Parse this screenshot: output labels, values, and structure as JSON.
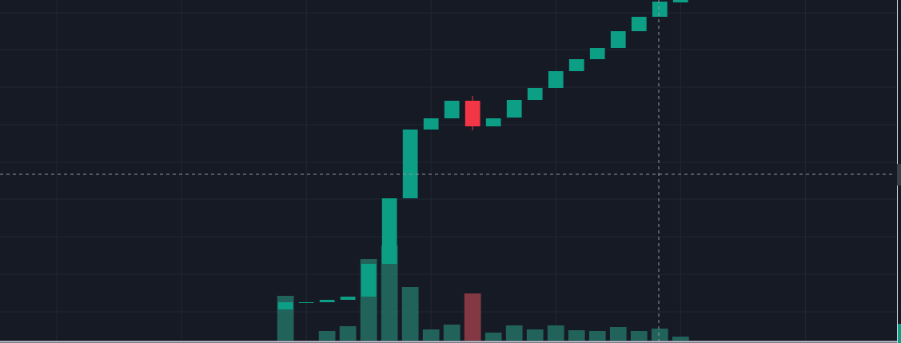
{
  "chart_data": {
    "type": "candlestick",
    "x": [
      0,
      1,
      2,
      3,
      4,
      5,
      6,
      7,
      8,
      9,
      10,
      11,
      12,
      13,
      14,
      15,
      16,
      17,
      18,
      19
    ],
    "open": [
      42,
      50,
      51,
      54,
      58,
      99,
      181,
      267,
      281,
      303,
      271,
      282,
      304,
      319,
      340,
      355,
      369,
      390,
      408,
      426
    ],
    "high": [
      51,
      51,
      54,
      58,
      99,
      181,
      267,
      281,
      303,
      309,
      281,
      304,
      319,
      340,
      355,
      369,
      390,
      408,
      427,
      429
    ],
    "low": [
      42,
      50,
      51,
      54,
      58,
      99,
      181,
      267,
      281,
      266,
      271,
      282,
      304,
      319,
      340,
      355,
      369,
      390,
      408,
      426
    ],
    "close": [
      51,
      51,
      54,
      58,
      99,
      181,
      267,
      281,
      303,
      271,
      281,
      304,
      319,
      340,
      355,
      369,
      390,
      408,
      427,
      429
    ],
    "volume": [
      56,
      0,
      12,
      18,
      102,
      119,
      67,
      14,
      20,
      59,
      10,
      19,
      14,
      19,
      13,
      12,
      17,
      12,
      15,
      5
    ],
    "up_color": "#0c9f86",
    "down_color": "#f23645",
    "volume_up_color": "#22675e",
    "volume_down_color": "#8a3a45",
    "xlim": [
      -13.73,
      29.6
    ],
    "xticks": [
      -11,
      -5,
      1,
      7,
      13,
      19,
      25
    ],
    "ylim": [
      0,
      429
    ],
    "yticks": [
      39,
      86,
      133,
      180,
      226,
      273,
      320,
      367,
      413
    ],
    "vlim": [
      0,
      426
    ],
    "grid": true
  }
}
